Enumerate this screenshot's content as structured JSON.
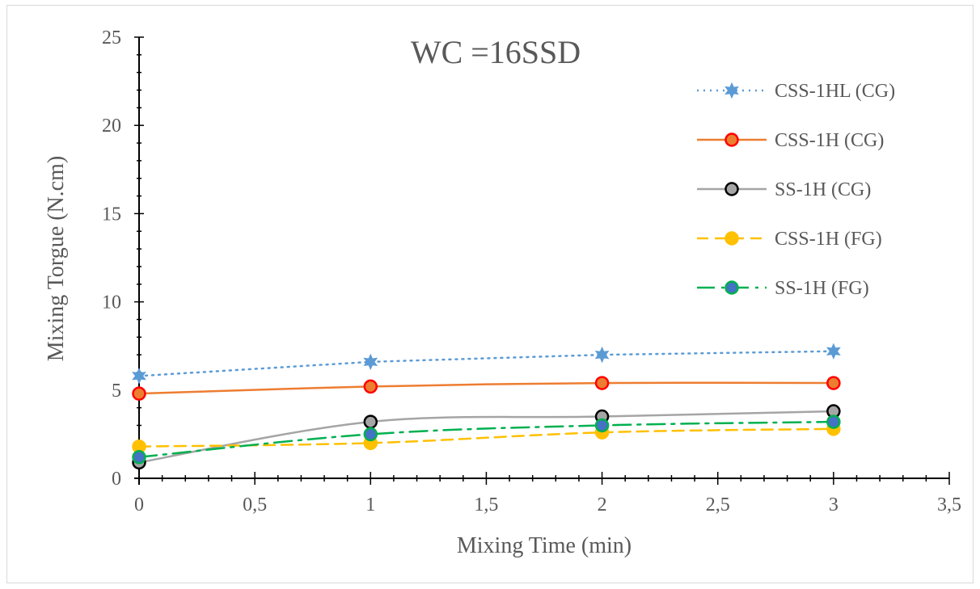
{
  "chart_data": {
    "type": "line",
    "title": "WC =16SSD",
    "xlabel": "Mixing Time (min)",
    "ylabel": "Mixing Torgue (N.cm)",
    "xlim": [
      0,
      3.5
    ],
    "ylim": [
      0,
      25
    ],
    "x_ticks": [
      "0",
      "0,5",
      "1",
      "1,5",
      "2",
      "2,5",
      "3",
      "3,5"
    ],
    "x_tick_values": [
      0,
      0.5,
      1,
      1.5,
      2,
      2.5,
      3,
      3.5
    ],
    "y_ticks": [
      "0",
      "5",
      "10",
      "15",
      "20",
      "25"
    ],
    "y_tick_values": [
      0,
      5,
      10,
      15,
      20,
      25
    ],
    "grid": false,
    "legend_position": "right",
    "x": [
      0,
      1,
      2,
      3
    ],
    "series": [
      {
        "name": "CSS-1HL (CG)",
        "values": [
          5.8,
          6.6,
          7.0,
          7.2
        ],
        "color": "#5b9bd5",
        "line_style": "dotted",
        "marker": "star",
        "marker_fill": "#5b9bd5",
        "marker_stroke": "#5b9bd5",
        "smooth": false
      },
      {
        "name": "CSS-1H (CG)",
        "values": [
          4.8,
          5.2,
          5.4,
          5.4
        ],
        "color": "#ed7d31",
        "line_style": "solid",
        "marker": "circle",
        "marker_fill": "#ed7d31",
        "marker_stroke": "#ff0000",
        "smooth": true
      },
      {
        "name": "SS-1H (CG)",
        "values": [
          0.9,
          3.2,
          3.5,
          3.8
        ],
        "color": "#a5a5a5",
        "line_style": "solid",
        "marker": "circle",
        "marker_fill": "#a5a5a5",
        "marker_stroke": "#000000",
        "smooth": true
      },
      {
        "name": "CSS-1H (FG)",
        "values": [
          1.8,
          2.0,
          2.6,
          2.8
        ],
        "color": "#ffc000",
        "line_style": "dashed",
        "marker": "circle",
        "marker_fill": "#ffc000",
        "marker_stroke": "#ffc000",
        "smooth": true
      },
      {
        "name": "SS-1H (FG)",
        "values": [
          1.2,
          2.5,
          3.0,
          3.2
        ],
        "color": "#00b050",
        "line_style": "dashdot",
        "marker": "circle",
        "marker_fill": "#4472c4",
        "marker_stroke": "#00b050",
        "smooth": true
      }
    ]
  }
}
